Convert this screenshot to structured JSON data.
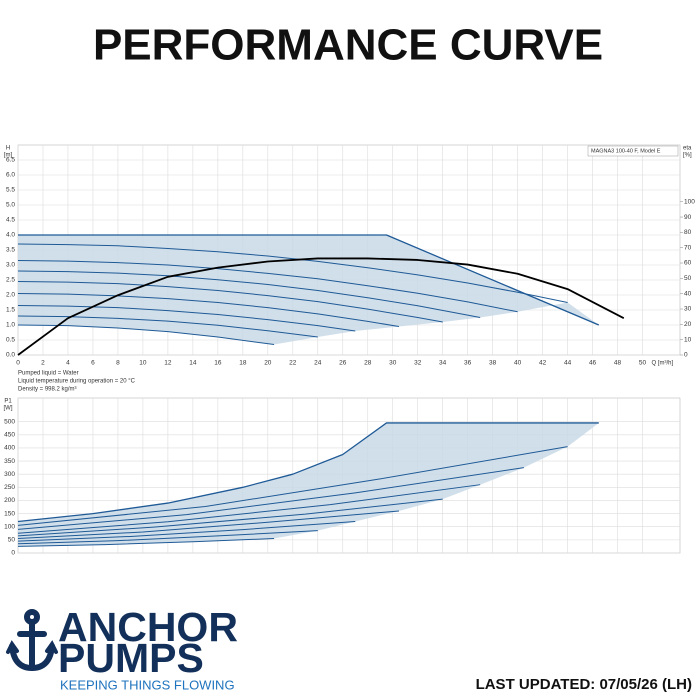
{
  "header": {
    "title": "PERFORMANCE CURVE"
  },
  "chart_data": [
    {
      "type": "line",
      "annotation": "MAGNA3 100-40 F, Model E",
      "ylabel": [
        "H",
        "[m]"
      ],
      "y2label": [
        "eta",
        "[%]"
      ],
      "xlabel": "Q [m³/h]",
      "xlim": [
        0,
        53
      ],
      "ylim": [
        0,
        7
      ],
      "y2lim": [
        0,
        137
      ],
      "xticks": [
        0,
        2,
        4,
        6,
        8,
        10,
        12,
        14,
        16,
        18,
        20,
        22,
        24,
        26,
        28,
        30,
        32,
        34,
        36,
        38,
        40,
        42,
        44,
        46,
        48,
        50
      ],
      "yticks": [
        {
          "value": 0,
          "label": "0.0"
        },
        {
          "value": 0.5,
          "label": "0.5"
        },
        {
          "value": 1,
          "label": "1.0"
        },
        {
          "value": 1.5,
          "label": "1.5"
        },
        {
          "value": 2,
          "label": "2.0"
        },
        {
          "value": 2.5,
          "label": "2.5"
        },
        {
          "value": 3,
          "label": "3.0"
        },
        {
          "value": 3.5,
          "label": "3.5"
        },
        {
          "value": 4,
          "label": "4.0"
        },
        {
          "value": 4.5,
          "label": "4.5"
        },
        {
          "value": 5,
          "label": "5.0"
        },
        {
          "value": 5.5,
          "label": "5.5"
        },
        {
          "value": 6,
          "label": "6.0"
        },
        {
          "value": 6.5,
          "label": "6.5"
        }
      ],
      "y2ticks": [
        0,
        10,
        20,
        30,
        40,
        50,
        60,
        70,
        80,
        90,
        100
      ],
      "grid": true,
      "fill": "#c9d9e7",
      "series": [
        {
          "color": "#1f5a96",
          "x": [
            0,
            29.5,
            46.5
          ],
          "values": [
            4.0,
            4.0,
            1.0
          ]
        },
        {
          "color": "#1f5a96",
          "x": [
            0,
            4,
            8,
            12,
            16,
            20.5
          ],
          "values": [
            1.0,
            0.98,
            0.9,
            0.78,
            0.6,
            0.35
          ]
        },
        {
          "color": "#1f5a96",
          "x": [
            0,
            4,
            8,
            12,
            16,
            20,
            24
          ],
          "values": [
            1.3,
            1.28,
            1.22,
            1.13,
            0.99,
            0.81,
            0.6
          ]
        },
        {
          "color": "#1f5a96",
          "x": [
            0,
            4,
            8,
            12,
            16,
            20,
            24,
            27
          ],
          "values": [
            1.65,
            1.63,
            1.58,
            1.48,
            1.35,
            1.18,
            0.98,
            0.8
          ]
        },
        {
          "color": "#1f5a96",
          "x": [
            0,
            4,
            8,
            12,
            16,
            20,
            24,
            28,
            30.5
          ],
          "values": [
            2.05,
            2.03,
            1.97,
            1.88,
            1.75,
            1.58,
            1.37,
            1.12,
            0.95
          ]
        },
        {
          "color": "#1f5a96",
          "x": [
            0,
            4,
            8,
            12,
            16,
            20,
            24,
            28,
            32,
            34
          ],
          "values": [
            2.45,
            2.43,
            2.38,
            2.28,
            2.15,
            1.98,
            1.78,
            1.53,
            1.25,
            1.1
          ]
        },
        {
          "color": "#1f5a96",
          "x": [
            0,
            4,
            8,
            12,
            16,
            20,
            24,
            28,
            32,
            36,
            37
          ],
          "values": [
            2.8,
            2.78,
            2.73,
            2.64,
            2.51,
            2.35,
            2.15,
            1.91,
            1.64,
            1.33,
            1.25
          ]
        },
        {
          "color": "#1f5a96",
          "x": [
            0,
            4,
            8,
            12,
            16,
            20,
            24,
            28,
            32,
            36,
            40
          ],
          "values": [
            3.15,
            3.13,
            3.08,
            3.0,
            2.88,
            2.72,
            2.54,
            2.31,
            2.06,
            1.77,
            1.44
          ]
        },
        {
          "color": "#1f5a96",
          "x": [
            0,
            4,
            8,
            12,
            16,
            20,
            24,
            28,
            32,
            36,
            40,
            44
          ],
          "values": [
            3.7,
            3.68,
            3.64,
            3.55,
            3.44,
            3.3,
            3.12,
            2.91,
            2.67,
            2.4,
            2.09,
            1.75
          ]
        },
        {
          "color": "#000000",
          "axis": "y2",
          "x": [
            0,
            4,
            8,
            12,
            16,
            20,
            24,
            28,
            32,
            36,
            40,
            44,
            48.5
          ],
          "values": [
            0,
            24,
            39,
            51,
            57,
            61,
            63,
            63,
            62,
            59,
            53,
            43,
            24
          ]
        }
      ]
    },
    {
      "type": "line",
      "ylabel": [
        "P1",
        "[W]"
      ],
      "xlim": [
        0,
        53
      ],
      "ylim": [
        0,
        590
      ],
      "xticks": [
        0,
        2,
        4,
        6,
        8,
        10,
        12,
        14,
        16,
        18,
        20,
        22,
        24,
        26,
        28,
        30,
        32,
        34,
        36,
        38,
        40,
        42,
        44,
        46,
        48,
        50
      ],
      "yticks": [
        0,
        50,
        100,
        150,
        200,
        250,
        300,
        350,
        400,
        450,
        500
      ],
      "grid": true,
      "fill": "#c9d9e7",
      "series": [
        {
          "color": "#1f5a96",
          "x": [
            0,
            6,
            12,
            18,
            22,
            26,
            29.5,
            46.5
          ],
          "values": [
            120,
            150,
            190,
            250,
            300,
            375,
            495,
            495
          ]
        },
        {
          "color": "#1f5a96",
          "x": [
            0,
            7,
            14,
            20.5
          ],
          "values": [
            25,
            32,
            43,
            55
          ]
        },
        {
          "color": "#1f5a96",
          "x": [
            0,
            8,
            16,
            24
          ],
          "values": [
            35,
            47,
            65,
            85
          ]
        },
        {
          "color": "#1f5a96",
          "x": [
            0,
            9,
            18,
            27
          ],
          "values": [
            45,
            63,
            89,
            120
          ]
        },
        {
          "color": "#1f5a96",
          "x": [
            0,
            10,
            20,
            30.5
          ],
          "values": [
            55,
            80,
            117,
            160
          ]
        },
        {
          "color": "#1f5a96",
          "x": [
            0,
            11,
            23,
            34
          ],
          "values": [
            65,
            99,
            148,
            205
          ]
        },
        {
          "color": "#1f5a96",
          "x": [
            0,
            12,
            25,
            37
          ],
          "values": [
            75,
            119,
            184,
            260
          ]
        },
        {
          "color": "#1f5a96",
          "x": [
            0,
            13.5,
            27,
            40.5
          ],
          "values": [
            90,
            146,
            229,
            325
          ]
        },
        {
          "color": "#1f5a96",
          "x": [
            0,
            15,
            29,
            44
          ],
          "values": [
            105,
            177,
            282,
            405
          ]
        }
      ]
    }
  ],
  "notes": [
    "Pumped liquid = Water",
    "Liquid temperature during operation = 20 °C",
    "Density = 998.2 kg/m³"
  ],
  "logo": {
    "line1": "ANCHOR",
    "line2": "PUMPS",
    "tagline": "KEEPING THINGS FLOWING"
  },
  "footer": {
    "updated": "LAST UPDATED: 07/05/26 (LH)"
  }
}
